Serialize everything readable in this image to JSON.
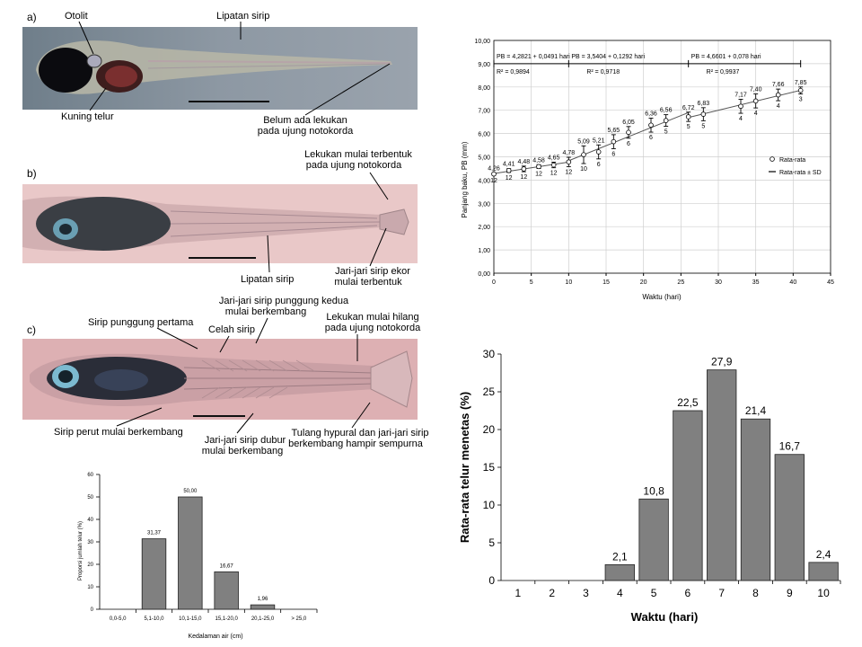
{
  "larvae": {
    "a": {
      "panel_label": "a)",
      "labels": {
        "otolit": "Otolit",
        "lipatan_sirip": "Lipatan sirip",
        "kuning_telur": "Kuning telur",
        "belum_lekukan_1": "Belum ada lekukan",
        "belum_lekukan_2": "pada ujung notokorda"
      }
    },
    "b": {
      "panel_label": "b)",
      "labels": {
        "lekukan_mulai_1": "Lekukan mulai terbentuk",
        "lekukan_mulai_2": "pada ujung notokorda",
        "lipatan_sirip": "Lipatan sirip",
        "jari_ekor_1": "Jari-jari sirip ekor",
        "jari_ekor_2": "mulai terbentuk"
      }
    },
    "c": {
      "panel_label": "c)",
      "labels": {
        "jari_punggung_1": "Jari-jari sirip punggung kedua",
        "jari_punggung_2": "mulai berkembang",
        "sirip_punggung_pertama": "Sirip punggung pertama",
        "celah_sirip": "Celah sirip",
        "lekukan_hilang_1": "Lekukan mulai hilang",
        "lekukan_hilang_2": "pada ujung notokorda",
        "sirip_perut": "Sirip perut mulai berkembang",
        "jari_dubur_1": "Jari-jari sirip dubur",
        "jari_dubur_2": "mulai berkembang",
        "hypural_1": "Tulang hypural dan jari-jari sirip",
        "hypural_2": "berkembang hampir sempurna"
      }
    }
  },
  "chart_data": [
    {
      "type": "line",
      "xlabel": "Waktu (hari)",
      "ylabel": "Panjang baku, PB (mm)",
      "xlim": [
        0,
        45
      ],
      "ylim": [
        0,
        10
      ],
      "xticks": [
        "0",
        "5",
        "10",
        "15",
        "20",
        "25",
        "30",
        "35",
        "40",
        "45"
      ],
      "yticks": [
        "0,00",
        "1,00",
        "2,00",
        "3,00",
        "4,00",
        "5,00",
        "6,00",
        "7,00",
        "8,00",
        "9,00",
        "10,00"
      ],
      "legend": [
        "Rata-rata",
        "Rata-rata ± SD"
      ],
      "legend_position": "right",
      "equations": [
        {
          "eq": "PB = 4,2821 + 0,0491 hari",
          "r2": "R² = 0,9894",
          "x_range": [
            0,
            10
          ]
        },
        {
          "eq": "PB = 3,5404 + 0,1292 hari",
          "r2": "R² = 0,9718",
          "x_range": [
            10,
            26
          ]
        },
        {
          "eq": "PB = 4,6601 + 0,078 hari",
          "r2": "R² = 0,9937",
          "x_range": [
            26,
            41
          ]
        }
      ],
      "points": [
        {
          "x": 0,
          "y": 4.26,
          "label": "4,26",
          "sd": 0.05,
          "n": "12"
        },
        {
          "x": 2,
          "y": 4.41,
          "label": "4,41",
          "sd": 0.08,
          "n": "12"
        },
        {
          "x": 4,
          "y": 4.48,
          "label": "4,48",
          "sd": 0.12,
          "n": "12"
        },
        {
          "x": 6,
          "y": 4.58,
          "label": "4,58",
          "sd": 0.08,
          "n": "12"
        },
        {
          "x": 8,
          "y": 4.65,
          "label": "4,65",
          "sd": 0.12,
          "n": "12"
        },
        {
          "x": 10,
          "y": 4.78,
          "label": "4,78",
          "sd": 0.2,
          "n": "12"
        },
        {
          "x": 12,
          "y": 5.09,
          "label": "5,09",
          "sd": 0.38,
          "n": "10"
        },
        {
          "x": 14,
          "y": 5.21,
          "label": "5,21",
          "sd": 0.3,
          "n": "6"
        },
        {
          "x": 16,
          "y": 5.65,
          "label": "5,65",
          "sd": 0.3,
          "n": "6"
        },
        {
          "x": 18,
          "y": 6.05,
          "label": "6,05",
          "sd": 0.25,
          "n": "6"
        },
        {
          "x": 21,
          "y": 6.36,
          "label": "6,36",
          "sd": 0.3,
          "n": "6"
        },
        {
          "x": 23,
          "y": 6.56,
          "label": "6,56",
          "sd": 0.25,
          "n": "5"
        },
        {
          "x": 26,
          "y": 6.72,
          "label": "6,72",
          "sd": 0.2,
          "n": "5"
        },
        {
          "x": 28,
          "y": 6.83,
          "label": "6,83",
          "sd": 0.28,
          "n": "5"
        },
        {
          "x": 33,
          "y": 7.17,
          "label": "7,17",
          "sd": 0.3,
          "n": "4"
        },
        {
          "x": 35,
          "y": 7.4,
          "label": "7,40",
          "sd": 0.3,
          "n": "4"
        },
        {
          "x": 38,
          "y": 7.66,
          "label": "7,66",
          "sd": 0.25,
          "n": "4"
        },
        {
          "x": 41,
          "y": 7.85,
          "label": "7,85",
          "sd": 0.15,
          "n": "3"
        }
      ]
    },
    {
      "type": "bar",
      "xlabel": "Kedalaman air (cm)",
      "ylabel": "Proporsi jumlah telur (%)",
      "ylim": [
        0,
        60
      ],
      "yticks": [
        "0",
        "10",
        "20",
        "30",
        "40",
        "50",
        "60"
      ],
      "categories": [
        "0,0-5,0",
        "5,1-10,0",
        "10,1-15,0",
        "15,1-20,0",
        "20,1-25,0",
        "> 25,0"
      ],
      "values": [
        0,
        31.37,
        50.0,
        16.67,
        1.96,
        0
      ],
      "data_labels": [
        "",
        "31,37",
        "50,00",
        "16,67",
        "1,96",
        ""
      ],
      "bar_color": "#808080"
    },
    {
      "type": "bar",
      "xlabel": "Waktu (hari)",
      "ylabel": "Rata-rata telur menetas (%)",
      "ylim": [
        0,
        30
      ],
      "yticks": [
        "0",
        "5",
        "10",
        "15",
        "20",
        "25",
        "30"
      ],
      "categories": [
        "1",
        "2",
        "3",
        "4",
        "5",
        "6",
        "7",
        "8",
        "9",
        "10"
      ],
      "values": [
        0,
        0,
        0,
        2.1,
        10.8,
        22.5,
        27.9,
        21.4,
        16.7,
        2.4
      ],
      "data_labels": [
        "",
        "",
        "",
        "2,1",
        "10,8",
        "22,5",
        "27,9",
        "21,4",
        "16,7",
        "2,4"
      ],
      "bar_color": "#808080"
    }
  ]
}
